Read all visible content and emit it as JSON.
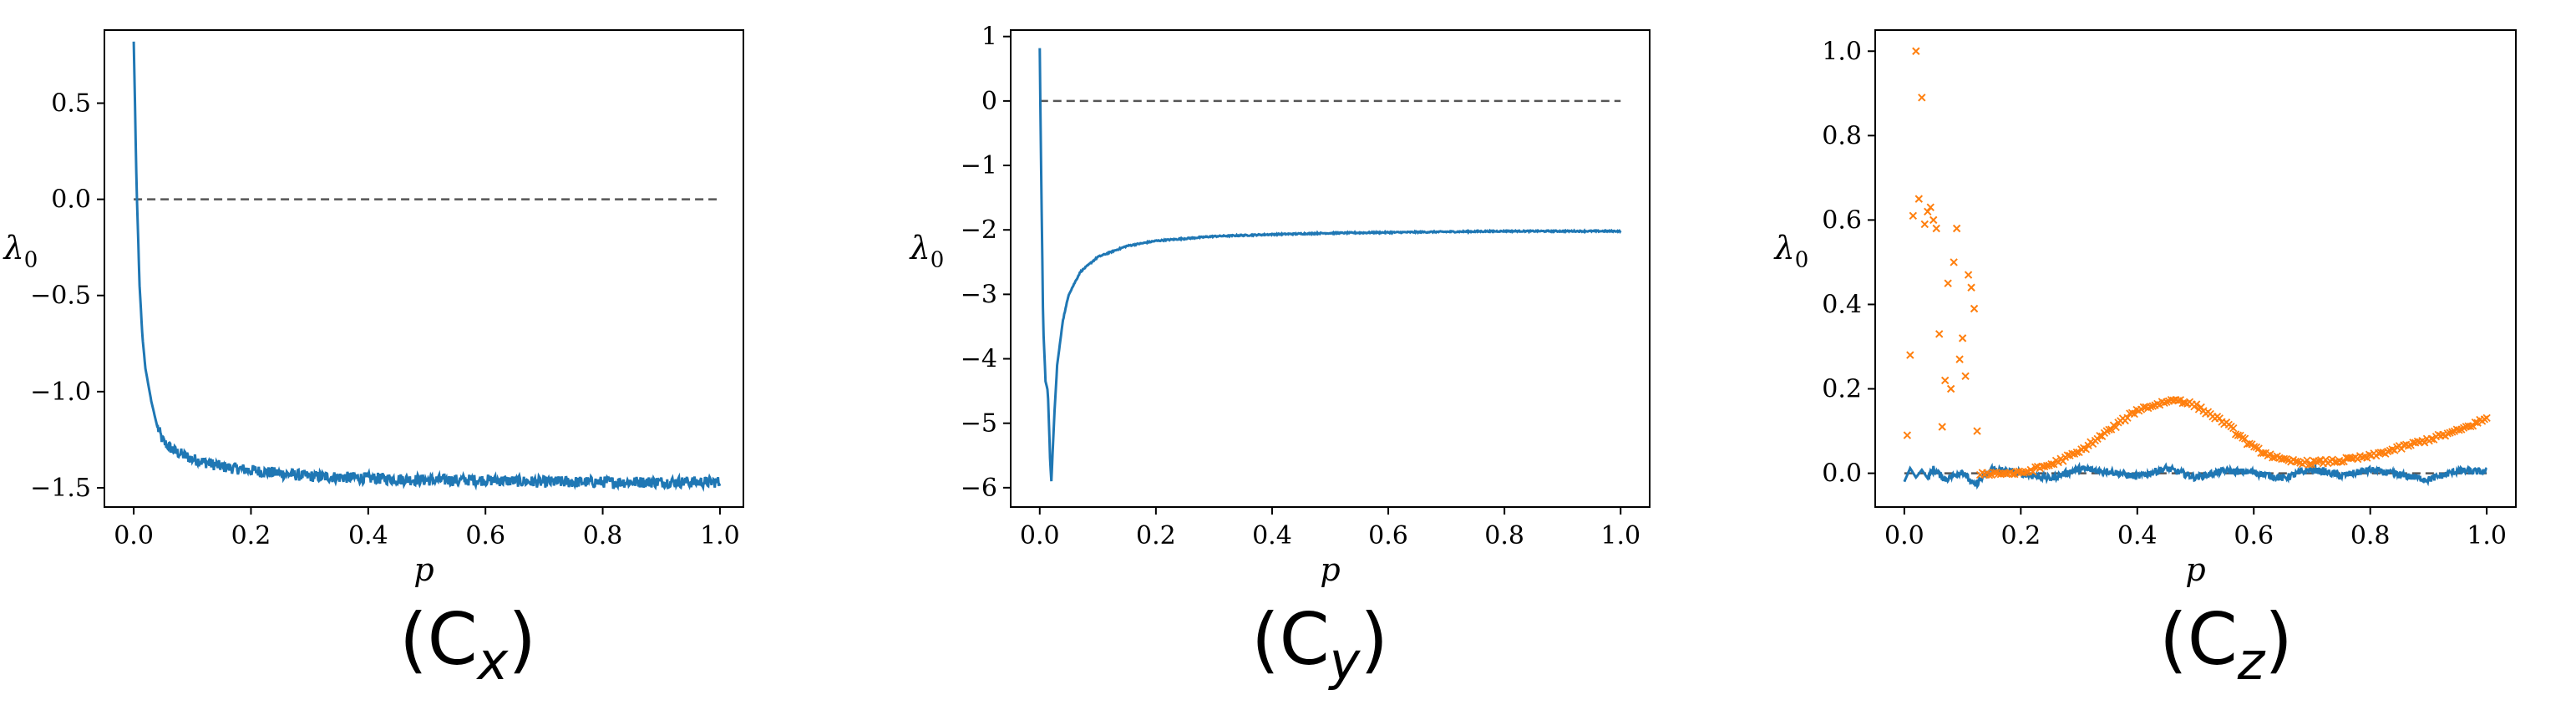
{
  "colors": {
    "series_blue": "#1f77b4",
    "series_orange": "#ff7f0e",
    "zero_line": "#555555"
  },
  "chart_data": [
    {
      "type": "line",
      "caption": "(C_x)",
      "xlabel": "p",
      "ylabel": "λ0",
      "xlim": [
        -0.05,
        1.04
      ],
      "ylim": [
        -1.6,
        0.88
      ],
      "xticks": [
        0.0,
        0.2,
        0.4,
        0.6,
        0.8,
        1.0
      ],
      "yticks": [
        0.5,
        0.0,
        -0.5,
        -1.0,
        -1.5
      ],
      "reference_line": {
        "y": 0.0,
        "x_range": [
          0.0,
          1.0
        ],
        "style": "dashed"
      },
      "series": [
        {
          "color": "#1f77b4",
          "noise": 0.03,
          "x": [
            0.0,
            0.005,
            0.01,
            0.015,
            0.02,
            0.03,
            0.04,
            0.05,
            0.07,
            0.1,
            0.15,
            0.2,
            0.3,
            0.4,
            0.5,
            0.6,
            0.7,
            0.8,
            0.9,
            1.0
          ],
          "y": [
            0.82,
            0.05,
            -0.45,
            -0.72,
            -0.88,
            -1.05,
            -1.18,
            -1.26,
            -1.31,
            -1.35,
            -1.39,
            -1.41,
            -1.44,
            -1.45,
            -1.46,
            -1.46,
            -1.47,
            -1.47,
            -1.47,
            -1.47
          ]
        }
      ]
    },
    {
      "type": "line",
      "caption": "(C_y)",
      "xlabel": "p",
      "ylabel": "λ0",
      "xlim": [
        -0.05,
        1.05
      ],
      "ylim": [
        -6.3,
        1.1
      ],
      "xticks": [
        0.0,
        0.2,
        0.4,
        0.6,
        0.8,
        1.0
      ],
      "yticks": [
        1,
        0,
        -1,
        -2,
        -3,
        -4,
        -5,
        -6
      ],
      "reference_line": {
        "y": 0.0,
        "x_range": [
          0.0,
          1.0
        ],
        "style": "dashed"
      },
      "series": [
        {
          "color": "#1f77b4",
          "noise": 0.01,
          "x": [
            0.0,
            0.003,
            0.006,
            0.01,
            0.014,
            0.018,
            0.02,
            0.025,
            0.03,
            0.04,
            0.05,
            0.07,
            0.1,
            0.15,
            0.2,
            0.3,
            0.4,
            0.5,
            0.6,
            0.7,
            0.8,
            0.9,
            1.0
          ],
          "y": [
            0.82,
            -1.5,
            -3.5,
            -4.35,
            -4.5,
            -5.6,
            -5.9,
            -4.9,
            -4.1,
            -3.4,
            -3.0,
            -2.65,
            -2.42,
            -2.25,
            -2.17,
            -2.1,
            -2.07,
            -2.05,
            -2.04,
            -2.03,
            -2.02,
            -2.02,
            -2.02
          ]
        }
      ]
    },
    {
      "type": "scatter",
      "caption": "(C_z)",
      "xlabel": "p",
      "ylabel": "λ0",
      "xlim": [
        -0.05,
        1.05
      ],
      "ylim": [
        -0.08,
        1.05
      ],
      "xticks": [
        0.0,
        0.2,
        0.4,
        0.6,
        0.8,
        1.0
      ],
      "yticks": [
        1.0,
        0.8,
        0.6,
        0.4,
        0.2,
        0.0
      ],
      "reference_line": {
        "y": 0.0,
        "x_range": [
          0.0,
          1.0
        ],
        "style": "dashed"
      },
      "series": [
        {
          "color": "#1f77b4",
          "kind": "line",
          "noise": 0.008,
          "x": [
            0.0,
            0.01,
            0.02,
            0.03,
            0.04,
            0.05,
            0.07,
            0.1,
            0.12,
            0.15,
            0.2,
            0.25,
            0.3,
            0.35,
            0.4,
            0.45,
            0.5,
            0.55,
            0.6,
            0.65,
            0.7,
            0.75,
            0.8,
            0.85,
            0.9,
            0.95,
            1.0
          ],
          "y": [
            -0.02,
            0.012,
            -0.01,
            0.008,
            -0.012,
            0.01,
            -0.015,
            0.005,
            -0.03,
            0.01,
            0.0,
            -0.012,
            0.01,
            0.005,
            -0.008,
            0.012,
            -0.01,
            0.006,
            0.002,
            -0.012,
            0.01,
            -0.006,
            0.008,
            -0.004,
            -0.015,
            0.006,
            0.003
          ]
        },
        {
          "color": "#ff7f0e",
          "kind": "scatter",
          "marker": "x",
          "x": [
            0.005,
            0.01,
            0.015,
            0.02,
            0.025,
            0.03,
            0.035,
            0.04,
            0.045,
            0.05,
            0.055,
            0.06,
            0.065,
            0.07,
            0.075,
            0.08,
            0.085,
            0.09,
            0.095,
            0.1,
            0.105,
            0.11,
            0.115,
            0.12,
            0.125
          ],
          "y": [
            0.09,
            0.28,
            0.61,
            1.0,
            0.65,
            0.89,
            0.59,
            0.62,
            0.63,
            0.6,
            0.58,
            0.33,
            0.11,
            0.22,
            0.45,
            0.2,
            0.5,
            0.58,
            0.27,
            0.32,
            0.23,
            0.47,
            0.44,
            0.39,
            0.1
          ]
        },
        {
          "color": "#ff7f0e",
          "kind": "scatter-dense",
          "marker": "x",
          "noise": 0.005,
          "x": [
            0.13,
            0.2,
            0.25,
            0.3,
            0.35,
            0.4,
            0.45,
            0.47,
            0.5,
            0.55,
            0.6,
            0.65,
            0.7,
            0.75,
            0.8,
            0.85,
            0.9,
            0.95,
            1.0
          ],
          "y": [
            0.0,
            0.0,
            0.02,
            0.05,
            0.1,
            0.15,
            0.17,
            0.175,
            0.16,
            0.12,
            0.06,
            0.03,
            0.025,
            0.03,
            0.04,
            0.06,
            0.08,
            0.1,
            0.13
          ]
        }
      ]
    }
  ]
}
